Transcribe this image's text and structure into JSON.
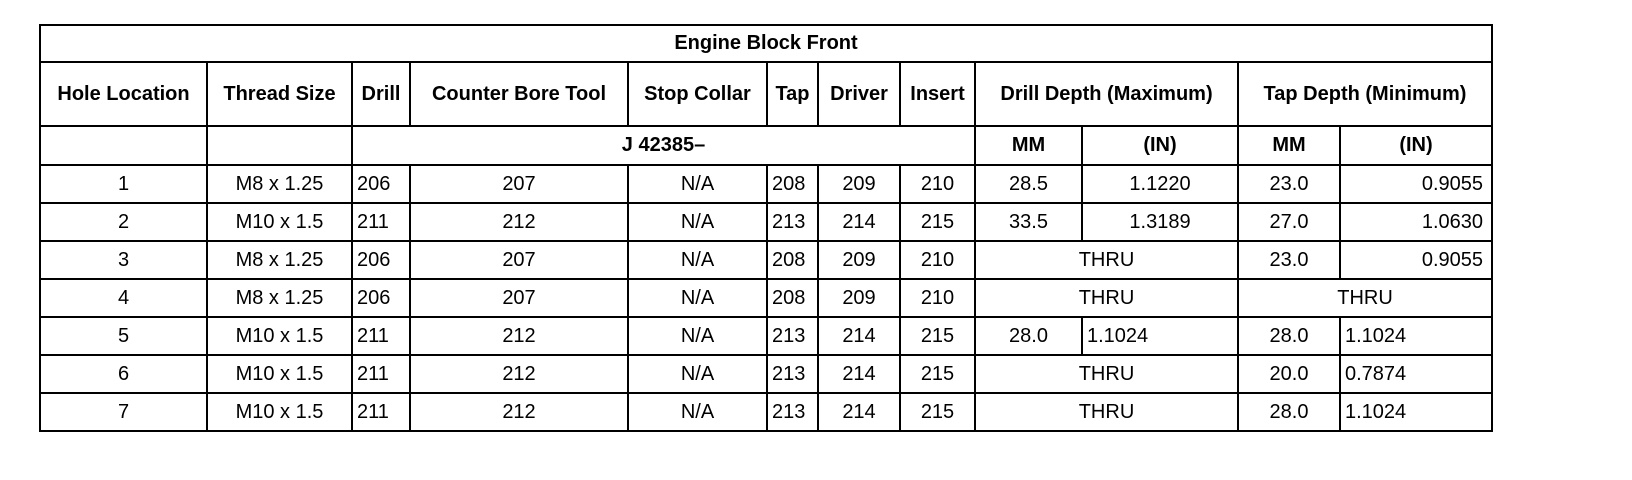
{
  "title": "Engine Block Front",
  "headers": [
    "Hole Location",
    "Thread Size",
    "Drill",
    "Counter Bore Tool",
    "Stop Collar",
    "Tap",
    "Driver",
    "Insert",
    "Drill Depth (Maximum)",
    "Tap Depth (Minimum)"
  ],
  "subheader": {
    "tool_prefix": "J 42385–",
    "mm": "MM",
    "in": "(IN)"
  },
  "rows": [
    {
      "cells": [
        {
          "v": "1"
        },
        {
          "v": "M8 x 1.25"
        },
        {
          "v": "206",
          "a": "l"
        },
        {
          "v": "207"
        },
        {
          "v": "N/A"
        },
        {
          "v": "208",
          "a": "l"
        },
        {
          "v": "209"
        },
        {
          "v": "210"
        },
        {
          "v": "28.5"
        },
        {
          "v": "1.1220"
        },
        {
          "v": "23.0"
        },
        {
          "v": "0.9055",
          "a": "r"
        }
      ]
    },
    {
      "cells": [
        {
          "v": "2"
        },
        {
          "v": "M10 x 1.5"
        },
        {
          "v": "211",
          "a": "l"
        },
        {
          "v": "212"
        },
        {
          "v": "N/A"
        },
        {
          "v": "213",
          "a": "l"
        },
        {
          "v": "214"
        },
        {
          "v": "215"
        },
        {
          "v": "33.5"
        },
        {
          "v": "1.3189"
        },
        {
          "v": "27.0"
        },
        {
          "v": "1.0630",
          "a": "r"
        }
      ]
    },
    {
      "cells": [
        {
          "v": "3"
        },
        {
          "v": "M8 x 1.25"
        },
        {
          "v": "206",
          "a": "l"
        },
        {
          "v": "207"
        },
        {
          "v": "N/A"
        },
        {
          "v": "208",
          "a": "l"
        },
        {
          "v": "209"
        },
        {
          "v": "210"
        },
        {
          "v": "THRU",
          "span": 2
        },
        {
          "v": "23.0"
        },
        {
          "v": "0.9055",
          "a": "r"
        }
      ]
    },
    {
      "cells": [
        {
          "v": "4"
        },
        {
          "v": "M8 x 1.25"
        },
        {
          "v": "206",
          "a": "l"
        },
        {
          "v": "207"
        },
        {
          "v": "N/A"
        },
        {
          "v": "208",
          "a": "l"
        },
        {
          "v": "209"
        },
        {
          "v": "210"
        },
        {
          "v": "THRU",
          "span": 2
        },
        {
          "v": "THRU",
          "span": 2
        }
      ]
    },
    {
      "cells": [
        {
          "v": "5"
        },
        {
          "v": "M10 x 1.5"
        },
        {
          "v": "211",
          "a": "l"
        },
        {
          "v": "212"
        },
        {
          "v": "N/A"
        },
        {
          "v": "213",
          "a": "l"
        },
        {
          "v": "214"
        },
        {
          "v": "215"
        },
        {
          "v": "28.0"
        },
        {
          "v": "1.1024",
          "a": "l"
        },
        {
          "v": "28.0"
        },
        {
          "v": "1.1024",
          "a": "l"
        }
      ]
    },
    {
      "cells": [
        {
          "v": "6"
        },
        {
          "v": "M10 x 1.5"
        },
        {
          "v": "211",
          "a": "l"
        },
        {
          "v": "212"
        },
        {
          "v": "N/A"
        },
        {
          "v": "213",
          "a": "l"
        },
        {
          "v": "214"
        },
        {
          "v": "215"
        },
        {
          "v": "THRU",
          "span": 2
        },
        {
          "v": "20.0"
        },
        {
          "v": "0.7874",
          "a": "l"
        }
      ]
    },
    {
      "cells": [
        {
          "v": "7"
        },
        {
          "v": "M10 x 1.5"
        },
        {
          "v": "211",
          "a": "l"
        },
        {
          "v": "212"
        },
        {
          "v": "N/A"
        },
        {
          "v": "213",
          "a": "l"
        },
        {
          "v": "214"
        },
        {
          "v": "215"
        },
        {
          "v": "THRU",
          "span": 2
        },
        {
          "v": "28.0"
        },
        {
          "v": "1.1024",
          "a": "l"
        }
      ]
    }
  ]
}
